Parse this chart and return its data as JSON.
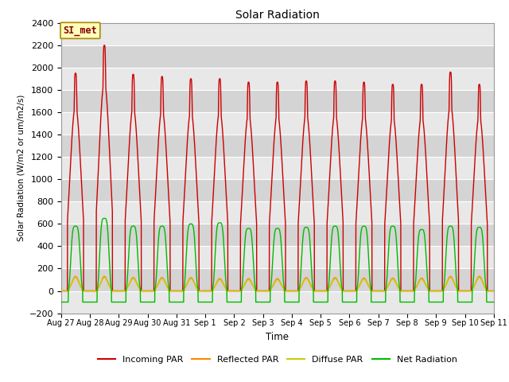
{
  "title": "Solar Radiation",
  "ylabel": "Solar Radiation (W/m2 or um/m2/s)",
  "xlabel": "Time",
  "ylim": [
    -200,
    2400
  ],
  "yticks": [
    -200,
    0,
    200,
    400,
    600,
    800,
    1000,
    1200,
    1400,
    1600,
    1800,
    2000,
    2200,
    2400
  ],
  "xtick_labels": [
    "Aug 27",
    "Aug 28",
    "Aug 29",
    "Aug 30",
    "Aug 31",
    "Sep 1",
    "Sep 2",
    "Sep 3",
    "Sep 4",
    "Sep 5",
    "Sep 6",
    "Sep 7",
    "Sep 8",
    "Sep 9",
    "Sep 10",
    "Sep 11"
  ],
  "annotation_text": "SI_met",
  "annotation_box_color": "#ffffbb",
  "annotation_box_edge": "#aa8800",
  "annotation_text_color": "#880000",
  "bg_color": "#dddddd",
  "grid_color": "#ffffff",
  "series": {
    "incoming_par": {
      "color": "#cc0000",
      "label": "Incoming PAR",
      "linewidth": 1.0
    },
    "reflected_par": {
      "color": "#ff8800",
      "label": "Reflected PAR",
      "linewidth": 1.0
    },
    "diffuse_par": {
      "color": "#cccc00",
      "label": "Diffuse PAR",
      "linewidth": 1.0
    },
    "net_radiation": {
      "color": "#00bb00",
      "label": "Net Radiation",
      "linewidth": 1.0
    }
  },
  "legend_ncol": 4,
  "num_days": 15,
  "peaks_incoming": [
    1950,
    2200,
    1940,
    1920,
    1900,
    1900,
    1870,
    1870,
    1880,
    1880,
    1870,
    1850,
    1850,
    1960,
    1850
  ],
  "peaks_net": [
    580,
    650,
    580,
    580,
    600,
    610,
    560,
    560,
    570,
    580,
    580,
    580,
    550,
    580,
    570
  ],
  "peaks_reflected": [
    130,
    130,
    120,
    120,
    120,
    110,
    110,
    110,
    120,
    120,
    115,
    115,
    115,
    130,
    130
  ],
  "peaks_diffuse": [
    120,
    120,
    110,
    110,
    110,
    100,
    100,
    100,
    110,
    110,
    105,
    105,
    105,
    120,
    120
  ],
  "night_val_incoming": 0,
  "night_val_net": -100,
  "night_val_reflected": 0,
  "night_val_diffuse": 0
}
